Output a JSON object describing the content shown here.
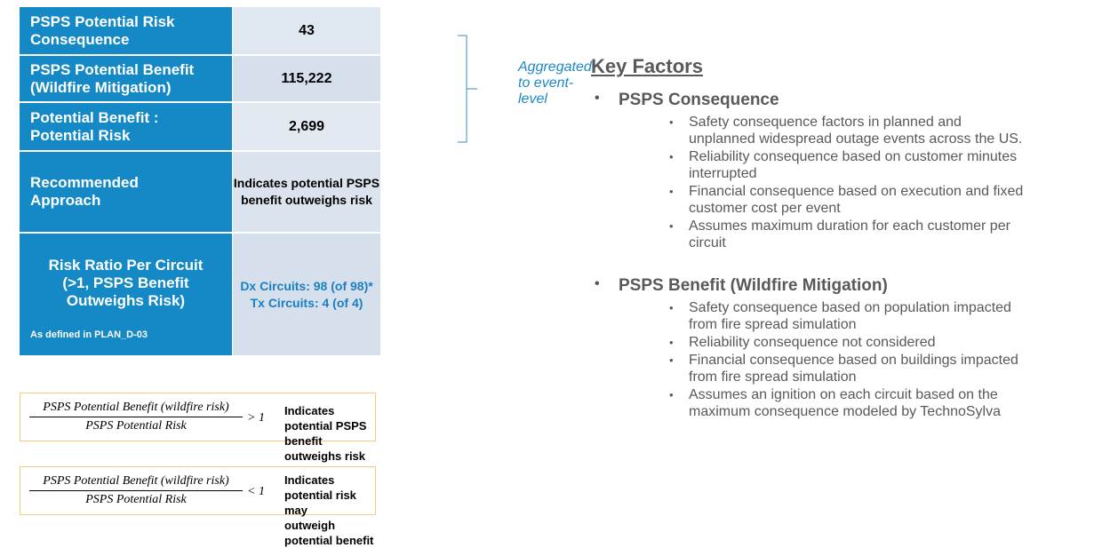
{
  "table": {
    "rows": [
      {
        "label": [
          "PSPS Potential Risk",
          "Consequence"
        ],
        "value": [
          "43"
        ]
      },
      {
        "label": [
          "PSPS Potential Benefit",
          "(Wildfire Mitigation)"
        ],
        "value": [
          "115,222"
        ]
      },
      {
        "label": [
          "Potential Benefit :",
          "Potential Risk"
        ],
        "value": [
          "2,699"
        ]
      },
      {
        "label": [
          "Recommended",
          "Approach"
        ],
        "value": [
          "Indicates potential PSPS",
          "benefit outweighs risk"
        ]
      },
      {
        "label": [
          "Risk Ratio Per Circuit",
          "(>1, PSPS Benefit",
          "Outweighs Risk)"
        ],
        "value": [
          "Dx Circuits:  98 (of 98)*",
          "Tx Circuits:  4 (of 4)"
        ]
      }
    ],
    "footnote": "As defined in PLAN_D-03"
  },
  "aggregation_note": [
    "Aggregated",
    "to event-",
    "level"
  ],
  "key_factors": {
    "title": "Key Factors",
    "groups": [
      {
        "heading": "PSPS Consequence",
        "items": [
          [
            "Safety consequence factors in planned and",
            "unplanned widespread outage events across the US."
          ],
          [
            "Reliability consequence based on customer minutes",
            "interrupted"
          ],
          [
            "Financial consequence based on execution and fixed",
            "customer cost per event"
          ],
          [
            "Assumes maximum duration for each customer per",
            "circuit"
          ]
        ]
      },
      {
        "heading": "PSPS Benefit (Wildfire Mitigation)",
        "items": [
          [
            "Safety consequence based on population impacted",
            "from fire spread simulation"
          ],
          [
            "Reliability consequence not considered"
          ],
          [
            "Financial consequence based on buildings impacted",
            "from fire spread simulation"
          ],
          [
            "Assumes an ignition on each circuit based on the",
            "maximum consequence modeled by TechnoSylva"
          ]
        ]
      }
    ]
  },
  "formulas": [
    {
      "numerator": "PSPS Potential Benefit (wildfire risk)",
      "denominator": "PSPS Potential Risk",
      "relation": "> 1",
      "meaning": [
        "Indicates potential PSPS",
        "benefit outweighs risk"
      ]
    },
    {
      "numerator": "PSPS Potential Benefit (wildfire risk)",
      "denominator": "PSPS Potential  Risk",
      "relation": "< 1",
      "meaning": [
        "Indicates potential risk may",
        "outweigh potential benefit"
      ]
    }
  ]
}
